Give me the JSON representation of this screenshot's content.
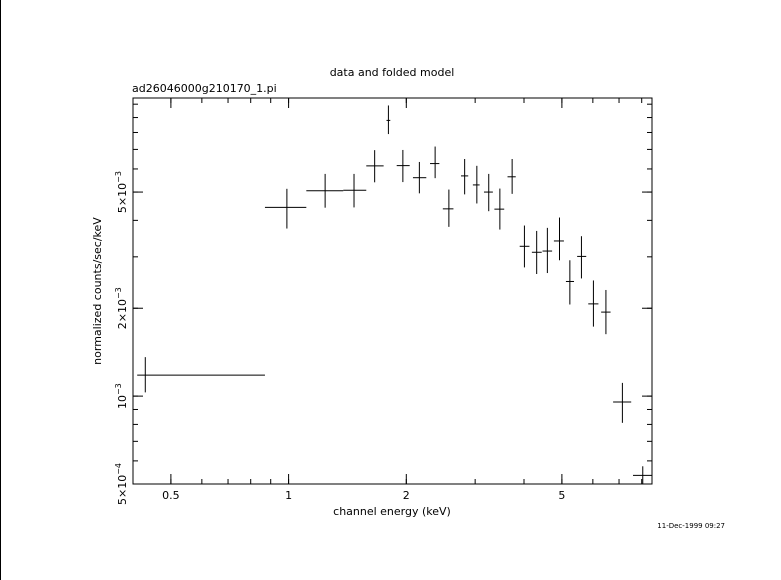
{
  "chart_data": {
    "type": "scatter",
    "title": "data and folded model",
    "subtitle": "ad26046000g210170_1.pi",
    "xlabel": "channel energy (keV)",
    "ylabel": "normalized counts/sec/keV",
    "x_scale": "log",
    "y_scale": "log",
    "xlim": [
      0.4,
      8.5
    ],
    "ylim": [
      0.0005,
      0.0105
    ],
    "grid": false,
    "x_ticks": [
      {
        "value": 0.5,
        "label": "0.5"
      },
      {
        "value": 1,
        "label": "1"
      },
      {
        "value": 2,
        "label": "2"
      },
      {
        "value": 5,
        "label": "5"
      }
    ],
    "y_ticks": [
      {
        "value": 0.0005,
        "mant": "5×10",
        "exp": "−4"
      },
      {
        "value": 0.001,
        "mant": "10",
        "exp": "−3"
      },
      {
        "value": 0.002,
        "mant": "2×10",
        "exp": "−3"
      },
      {
        "value": 0.005,
        "mant": "5×10",
        "exp": "−3"
      }
    ],
    "series": [
      {
        "points": [
          {
            "x": 0.43,
            "xlo": 0.41,
            "xhi": 0.87,
            "y": 0.00118,
            "ylo": 0.00103,
            "yhi": 0.00136
          },
          {
            "x": 0.99,
            "xlo": 0.87,
            "xhi": 1.11,
            "y": 0.00443,
            "ylo": 0.00375,
            "yhi": 0.00513
          },
          {
            "x": 1.24,
            "xlo": 1.11,
            "xhi": 1.38,
            "y": 0.00505,
            "ylo": 0.00442,
            "yhi": 0.00577
          },
          {
            "x": 1.47,
            "xlo": 1.38,
            "xhi": 1.58,
            "y": 0.00507,
            "ylo": 0.00443,
            "yhi": 0.00577
          },
          {
            "x": 1.66,
            "xlo": 1.58,
            "xhi": 1.75,
            "y": 0.00615,
            "ylo": 0.0054,
            "yhi": 0.00696
          },
          {
            "x": 1.8,
            "xlo": 1.78,
            "xhi": 1.82,
            "y": 0.0088,
            "ylo": 0.0079,
            "yhi": 0.0099
          },
          {
            "x": 1.96,
            "xlo": 1.89,
            "xhi": 2.04,
            "y": 0.00616,
            "ylo": 0.00541,
            "yhi": 0.00697
          },
          {
            "x": 2.16,
            "xlo": 2.08,
            "xhi": 2.25,
            "y": 0.0056,
            "ylo": 0.00495,
            "yhi": 0.00634
          },
          {
            "x": 2.37,
            "xlo": 2.3,
            "xhi": 2.43,
            "y": 0.00626,
            "ylo": 0.00558,
            "yhi": 0.00716
          },
          {
            "x": 2.57,
            "xlo": 2.48,
            "xhi": 2.64,
            "y": 0.00438,
            "ylo": 0.0038,
            "yhi": 0.0051
          },
          {
            "x": 2.82,
            "xlo": 2.76,
            "xhi": 2.88,
            "y": 0.00568,
            "ylo": 0.00491,
            "yhi": 0.00649
          },
          {
            "x": 3.03,
            "xlo": 2.96,
            "xhi": 3.08,
            "y": 0.00529,
            "ylo": 0.00457,
            "yhi": 0.00615
          },
          {
            "x": 3.25,
            "xlo": 3.16,
            "xhi": 3.33,
            "y": 0.005,
            "ylo": 0.0043,
            "yhi": 0.00577
          },
          {
            "x": 3.47,
            "xlo": 3.36,
            "xhi": 3.56,
            "y": 0.00437,
            "ylo": 0.00372,
            "yhi": 0.00514
          },
          {
            "x": 3.73,
            "xlo": 3.63,
            "xhi": 3.81,
            "y": 0.00564,
            "ylo": 0.00493,
            "yhi": 0.00649
          },
          {
            "x": 4.01,
            "xlo": 3.9,
            "xhi": 4.13,
            "y": 0.00326,
            "ylo": 0.00276,
            "yhi": 0.00384
          },
          {
            "x": 4.31,
            "xlo": 4.19,
            "xhi": 4.44,
            "y": 0.00311,
            "ylo": 0.00262,
            "yhi": 0.00368
          },
          {
            "x": 4.59,
            "xlo": 4.46,
            "xhi": 4.72,
            "y": 0.00314,
            "ylo": 0.00264,
            "yhi": 0.00377
          },
          {
            "x": 4.93,
            "xlo": 4.77,
            "xhi": 5.06,
            "y": 0.0034,
            "ylo": 0.00292,
            "yhi": 0.00409
          },
          {
            "x": 5.24,
            "xlo": 5.12,
            "xhi": 5.37,
            "y": 0.00247,
            "ylo": 0.00206,
            "yhi": 0.00292
          },
          {
            "x": 5.61,
            "xlo": 5.47,
            "xhi": 5.77,
            "y": 0.00301,
            "ylo": 0.00253,
            "yhi": 0.00353
          },
          {
            "x": 6.02,
            "xlo": 5.84,
            "xhi": 6.2,
            "y": 0.00207,
            "ylo": 0.00173,
            "yhi": 0.00249
          },
          {
            "x": 6.48,
            "xlo": 6.3,
            "xhi": 6.66,
            "y": 0.00194,
            "ylo": 0.00163,
            "yhi": 0.00231
          },
          {
            "x": 7.14,
            "xlo": 6.76,
            "xhi": 7.52,
            "y": 0.000955,
            "ylo": 0.00081,
            "yhi": 0.00111
          },
          {
            "x": 8.05,
            "xlo": 7.6,
            "xhi": 8.5,
            "y": 0.000535,
            "ylo": 0.00048,
            "yhi": 0.000575
          }
        ]
      }
    ]
  },
  "footer": {
    "timestamp": "11-Dec-1999 09:27"
  }
}
